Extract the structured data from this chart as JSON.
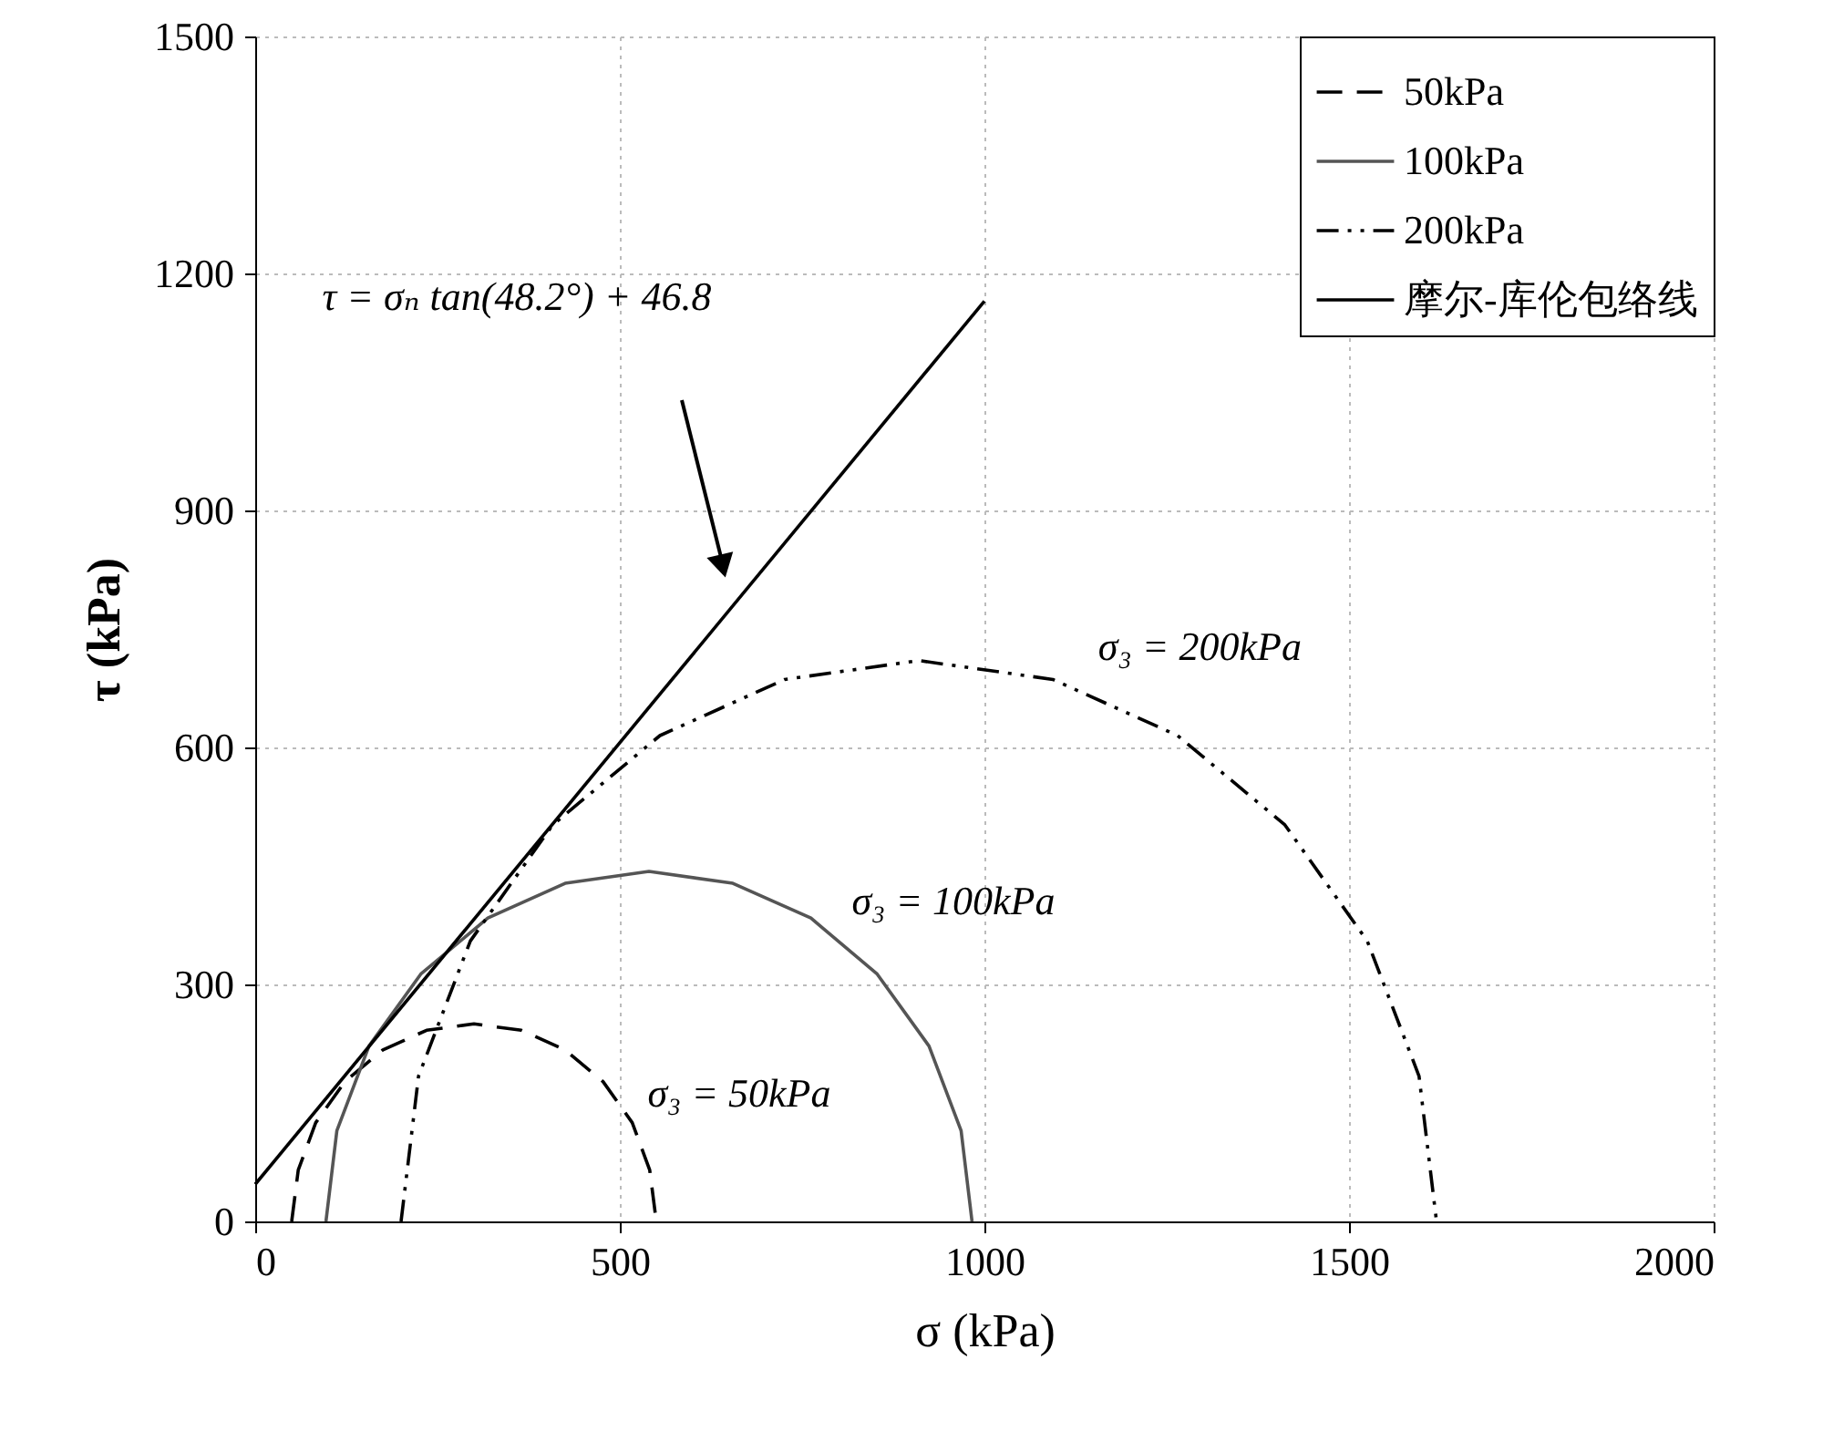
{
  "chart_data": {
    "type": "line",
    "xlabel": "σ (kPa)",
    "ylabel": "τ (kPa)",
    "xlim": [
      0,
      2000
    ],
    "xticks": [
      0,
      500,
      1000,
      1500,
      2000
    ],
    "ylim": [
      0,
      1500
    ],
    "yticks": [
      0,
      300,
      600,
      900,
      1200,
      1500
    ],
    "grid": true,
    "legend": "top right",
    "marker": "none",
    "series": [
      {
        "name": "50kPa",
        "color": "#000000",
        "line_style": "dashed",
        "x": [
          50,
          59,
          83,
          123,
          175,
          235,
          300,
          365,
          425,
          477,
          517,
          541,
          550
        ],
        "values": [
          0,
          65,
          125,
          177,
          217,
          242,
          250,
          242,
          217,
          177,
          125,
          65,
          0
        ]
      },
      {
        "name": "100kPa",
        "color": "#555555",
        "line_style": "solid",
        "x": [
          97,
          112,
          156,
          227,
          319,
          425,
          540,
          655,
          762,
          853,
          924,
          968,
          983
        ],
        "values": [
          0,
          115,
          222,
          313,
          384,
          428,
          443,
          428,
          384,
          313,
          222,
          115,
          0
        ]
      },
      {
        "name": "200kPa",
        "color": "#000000",
        "line_style": "dotted",
        "x": [
          200,
          224,
          295,
          408,
          555,
          726,
          910,
          1094,
          1265,
          1412,
          1525,
          1596,
          1620
        ],
        "values": [
          0,
          184,
          355,
          502,
          615,
          686,
          710,
          686,
          615,
          502,
          355,
          184,
          0
        ]
      },
      {
        "name": "摩尔-库伦包络线",
        "color": "#000000",
        "line_style": "solid",
        "x": [
          0,
          1000
        ],
        "values": [
          47,
          1165
        ]
      }
    ],
    "annotations": [
      "τ = σₙ tan(48.2°) + 46.8",
      "σ₃ = 200kPa",
      "σ₃ = 100kPa",
      "σ₃ = 50kPa"
    ]
  }
}
